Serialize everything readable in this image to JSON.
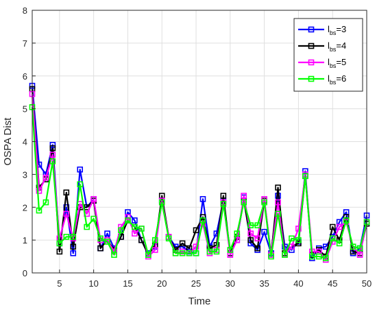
{
  "chart_data": {
    "type": "line",
    "xlabel": "Time",
    "ylabel": "OSPA Dist",
    "xlim": [
      1,
      50
    ],
    "ylim": [
      0,
      8
    ],
    "xticks": [
      "5",
      "10",
      "15",
      "20",
      "25",
      "30",
      "35",
      "40",
      "45",
      "50"
    ],
    "yticks": [
      "0",
      "1",
      "2",
      "3",
      "4",
      "5",
      "6",
      "7",
      "8"
    ],
    "grid": true,
    "legend_position": "top-right",
    "x": [
      1,
      2,
      3,
      4,
      5,
      6,
      7,
      8,
      9,
      10,
      11,
      12,
      13,
      14,
      15,
      16,
      17,
      18,
      19,
      20,
      21,
      22,
      23,
      24,
      25,
      26,
      27,
      28,
      29,
      30,
      31,
      32,
      33,
      34,
      35,
      36,
      37,
      38,
      39,
      40,
      41,
      42,
      43,
      44,
      45,
      46,
      47,
      48,
      49,
      50
    ],
    "series": [
      {
        "name": "l_bs=3",
        "label_main": "l",
        "label_sub": "bs",
        "label_value": "=3",
        "color": "#0000ff",
        "values": [
          5.7,
          3.3,
          3.0,
          3.9,
          0.9,
          2.0,
          0.6,
          3.15,
          2.0,
          2.25,
          0.75,
          1.2,
          0.75,
          1.1,
          1.85,
          1.6,
          1.0,
          0.6,
          0.8,
          2.2,
          1.1,
          0.8,
          0.8,
          0.65,
          0.6,
          2.25,
          0.8,
          1.2,
          2.2,
          0.6,
          1.0,
          2.3,
          0.9,
          0.7,
          1.25,
          0.6,
          2.35,
          0.8,
          0.7,
          0.95,
          3.1,
          0.45,
          0.75,
          0.8,
          1.1,
          1.55,
          1.85,
          0.6,
          0.75,
          1.75
        ]
      },
      {
        "name": "l_bs=4",
        "label_main": "l",
        "label_sub": "bs",
        "label_value": "=4",
        "color": "#000000",
        "values": [
          5.6,
          2.6,
          2.85,
          3.8,
          0.65,
          2.45,
          0.8,
          2.0,
          2.0,
          2.2,
          0.75,
          1.0,
          0.7,
          1.1,
          1.6,
          1.4,
          1.0,
          0.55,
          0.85,
          2.35,
          1.1,
          0.7,
          0.9,
          0.75,
          1.3,
          1.7,
          0.75,
          0.85,
          2.35,
          0.6,
          1.1,
          2.2,
          1.0,
          0.75,
          2.2,
          0.55,
          2.6,
          0.6,
          0.8,
          0.9,
          2.95,
          0.55,
          0.7,
          0.5,
          1.4,
          1.0,
          1.7,
          0.65,
          0.6,
          1.5
        ]
      },
      {
        "name": "l_bs=5",
        "label_main": "l",
        "label_sub": "bs",
        "label_value": "=5",
        "color": "#ff00ff",
        "values": [
          5.45,
          2.5,
          2.9,
          3.6,
          1.05,
          1.8,
          1.05,
          2.1,
          1.8,
          2.25,
          1.0,
          1.0,
          0.65,
          1.4,
          1.7,
          1.2,
          1.35,
          0.5,
          0.7,
          2.2,
          1.1,
          0.6,
          0.65,
          0.6,
          0.8,
          1.5,
          0.6,
          0.7,
          2.15,
          0.55,
          1.0,
          2.35,
          1.2,
          1.05,
          2.25,
          0.55,
          2.15,
          0.55,
          0.8,
          1.35,
          3.0,
          0.65,
          0.65,
          0.4,
          0.95,
          1.4,
          1.55,
          0.8,
          0.55,
          1.55
        ]
      },
      {
        "name": "l_bs=6",
        "label_main": "l",
        "label_sub": "bs",
        "label_value": "=6",
        "color": "#00ff00",
        "values": [
          5.05,
          1.9,
          2.15,
          3.4,
          0.9,
          1.1,
          1.1,
          2.7,
          1.4,
          1.65,
          1.05,
          0.95,
          0.55,
          1.3,
          1.6,
          1.4,
          1.35,
          0.55,
          1.0,
          2.15,
          1.05,
          0.6,
          0.6,
          0.6,
          0.6,
          1.6,
          0.65,
          0.65,
          2.1,
          0.7,
          1.2,
          2.15,
          1.45,
          1.45,
          2.15,
          0.5,
          1.8,
          0.55,
          1.05,
          1.0,
          2.95,
          0.5,
          0.5,
          0.45,
          1.05,
          0.9,
          1.6,
          0.8,
          0.75,
          1.55
        ]
      }
    ]
  }
}
